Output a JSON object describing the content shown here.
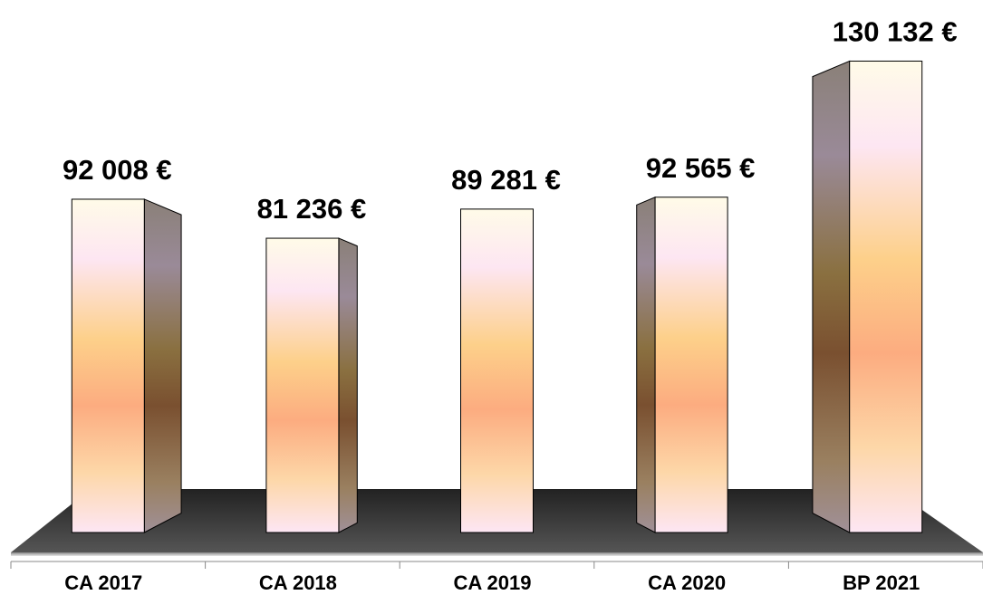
{
  "chart_data": {
    "type": "bar3d",
    "categories": [
      "CA 2017",
      "CA 2018",
      "CA 2019",
      "CA 2020",
      "BP 2021"
    ],
    "values": [
      92008,
      81236,
      89281,
      92565,
      130132
    ],
    "value_labels": [
      "92 008 €",
      "81 236 €",
      "89 281 €",
      "92 565 €",
      "130 132 €"
    ]
  }
}
